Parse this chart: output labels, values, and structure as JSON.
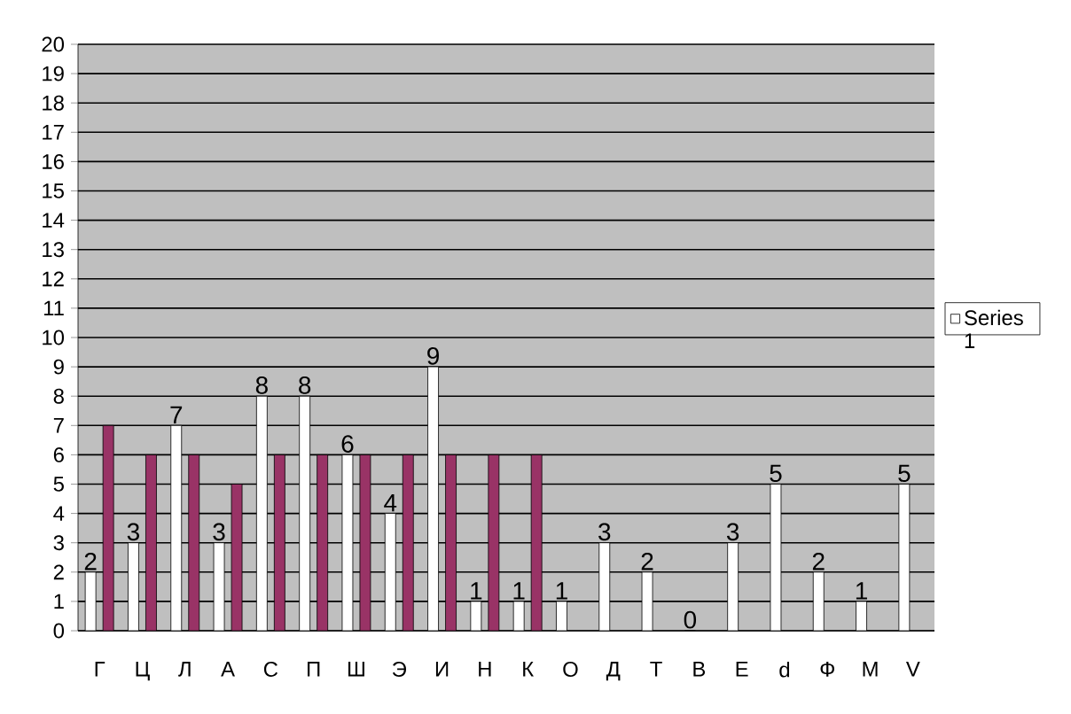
{
  "chart_data": {
    "type": "bar",
    "categories": [
      "Г",
      "Ц",
      "Л",
      "А",
      "С",
      "П",
      "Ш",
      "Э",
      "И",
      "Н",
      "К",
      "О",
      "Д",
      "Т",
      "В",
      "Е",
      "d",
      "Ф",
      "М",
      "V"
    ],
    "series": [
      {
        "name": "Series 1",
        "color": "#ffffff",
        "values": [
          2,
          3,
          7,
          3,
          8,
          8,
          6,
          4,
          9,
          1,
          1,
          1,
          3,
          2,
          0,
          3,
          5,
          2,
          1,
          5
        ],
        "value_labels": [
          "2",
          "3",
          "7",
          "3",
          "8",
          "8",
          "6",
          "4",
          "9",
          "1",
          "1",
          "1",
          "3",
          "2",
          "0",
          "3",
          "5",
          "2",
          "1",
          "5"
        ]
      },
      {
        "color": "#993366",
        "values": [
          7,
          6,
          6,
          5,
          6,
          6,
          6,
          6,
          6,
          6,
          6,
          null,
          null,
          null,
          null,
          null,
          null,
          null,
          null,
          null
        ]
      }
    ],
    "ylim": [
      0,
      20
    ],
    "yticks": [
      0,
      1,
      2,
      3,
      4,
      5,
      6,
      7,
      8,
      9,
      10,
      11,
      12,
      13,
      14,
      15,
      16,
      17,
      18,
      19,
      20
    ],
    "grid": "y",
    "legend": "right"
  }
}
